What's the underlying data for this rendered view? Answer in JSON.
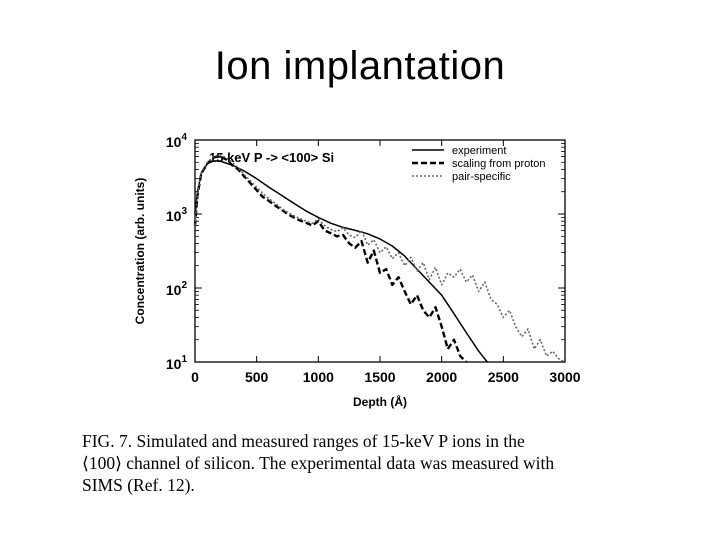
{
  "slide": {
    "title": "Ion implantation"
  },
  "figure": {
    "caption_lines": [
      "FIG. 7.  Simulated and measured ranges of 15-keV P ions in the",
      "⟨100⟩ channel of silicon. The experimental data was measured with",
      "SIMS (Ref. 12)."
    ]
  },
  "chart_data": {
    "type": "line",
    "title": "15 keV P -> <100> Si",
    "xlabel": "Depth (Å)",
    "ylabel": "Concentration (arb. units)",
    "xlim": [
      0,
      3000
    ],
    "ylim": [
      10,
      10000
    ],
    "yscale": "log",
    "x_ticks": [
      0,
      500,
      1000,
      1500,
      2000,
      2500,
      3000
    ],
    "y_ticks": [
      {
        "value": 10,
        "base": "10",
        "exp": "1"
      },
      {
        "value": 100,
        "base": "10",
        "exp": "2"
      },
      {
        "value": 1000,
        "base": "10",
        "exp": "3"
      },
      {
        "value": 10000,
        "base": "10",
        "exp": "4"
      }
    ],
    "legend_position": "top-right",
    "series": [
      {
        "name": "experiment",
        "style": "solid",
        "color": "#000000",
        "x": [
          0,
          20,
          50,
          100,
          150,
          200,
          300,
          400,
          500,
          600,
          700,
          800,
          900,
          1000,
          1100,
          1200,
          1300,
          1400,
          1500,
          1600,
          1700,
          1800,
          1900,
          2000,
          2100,
          2200,
          2300,
          2370
        ],
        "y": [
          1000,
          2000,
          3500,
          4800,
          5200,
          5200,
          4600,
          3800,
          3000,
          2300,
          1800,
          1400,
          1100,
          900,
          750,
          660,
          600,
          540,
          460,
          370,
          270,
          180,
          120,
          80,
          45,
          25,
          14,
          10
        ]
      },
      {
        "name": "scaling from proton",
        "style": "dashed",
        "color": "#000000",
        "x": [
          0,
          20,
          50,
          100,
          150,
          200,
          250,
          300,
          350,
          400,
          450,
          500,
          550,
          600,
          650,
          700,
          750,
          800,
          850,
          900,
          950,
          1000,
          1050,
          1100,
          1150,
          1200,
          1250,
          1300,
          1350,
          1400,
          1450,
          1500,
          1550,
          1600,
          1650,
          1700,
          1750,
          1800,
          1850,
          1900,
          1950,
          2000,
          2050,
          2100,
          2150,
          2200
        ],
        "y": [
          700,
          1800,
          3500,
          4800,
          5800,
          6000,
          5500,
          4600,
          4000,
          3200,
          2600,
          2100,
          1700,
          1500,
          1300,
          1150,
          1000,
          900,
          820,
          760,
          700,
          800,
          600,
          550,
          500,
          520,
          400,
          350,
          430,
          220,
          320,
          160,
          180,
          110,
          140,
          90,
          60,
          80,
          50,
          40,
          55,
          30,
          15,
          20,
          12,
          10
        ]
      },
      {
        "name": "pair-specific",
        "style": "dotted",
        "color": "#666666",
        "x": [
          0,
          20,
          50,
          100,
          150,
          200,
          250,
          300,
          350,
          400,
          450,
          500,
          550,
          600,
          650,
          700,
          750,
          800,
          850,
          900,
          950,
          1000,
          1050,
          1100,
          1150,
          1200,
          1250,
          1300,
          1350,
          1400,
          1450,
          1500,
          1550,
          1600,
          1650,
          1700,
          1750,
          1800,
          1850,
          1900,
          1950,
          2000,
          2050,
          2100,
          2150,
          2200,
          2250,
          2300,
          2350,
          2400,
          2450,
          2500,
          2550,
          2600,
          2650,
          2700,
          2750,
          2800,
          2850,
          2900,
          2950,
          3000
        ],
        "y": [
          700,
          1900,
          3600,
          5000,
          6000,
          6300,
          5800,
          5000,
          4200,
          3400,
          2800,
          2300,
          1900,
          1600,
          1400,
          1200,
          1050,
          950,
          870,
          800,
          750,
          850,
          700,
          620,
          580,
          650,
          520,
          480,
          600,
          380,
          450,
          300,
          360,
          250,
          300,
          200,
          260,
          170,
          220,
          130,
          190,
          110,
          160,
          140,
          180,
          120,
          150,
          90,
          120,
          70,
          60,
          40,
          50,
          30,
          22,
          28,
          15,
          20,
          12,
          14,
          11,
          10
        ]
      }
    ]
  }
}
